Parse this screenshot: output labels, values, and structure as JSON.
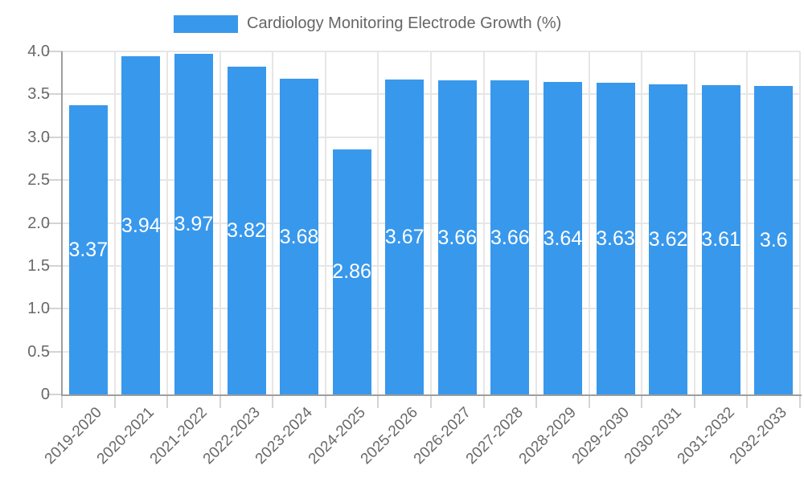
{
  "legend": {
    "label": "Cardiology Monitoring Electrode Growth (%)",
    "swatch_color": "#3898EC"
  },
  "chart_data": {
    "type": "bar",
    "title": "Cardiology Monitoring Electrode Growth (%)",
    "categories": [
      "2019-2020",
      "2020-2021",
      "2021-2022",
      "2022-2023",
      "2023-2024",
      "2024-2025",
      "2025-2026",
      "2026-2027",
      "2027-2028",
      "2028-2029",
      "2029-2030",
      "2030-2031",
      "2031-2032",
      "2032-2033"
    ],
    "values": [
      3.37,
      3.94,
      3.97,
      3.82,
      3.68,
      2.86,
      3.67,
      3.66,
      3.66,
      3.64,
      3.63,
      3.62,
      3.61,
      3.6
    ],
    "value_labels": [
      "3.37",
      "3.94",
      "3.97",
      "3.82",
      "3.68",
      "2.86",
      "3.67",
      "3.66",
      "3.66",
      "3.64",
      "3.63",
      "3.62",
      "3.61",
      "3.6"
    ],
    "xlabel": "",
    "ylabel": "",
    "ylim": [
      0,
      4.0
    ],
    "ytick_step": 0.5,
    "ytick_labels_top_to_bottom": [
      "4.0",
      "3.5",
      "3.0",
      "2.5",
      "2.0",
      "1.5",
      "1.0",
      "0.5",
      "0"
    ],
    "grid": true,
    "legend_position": "top-center",
    "colors": {
      "bar": "#3898EC",
      "value_text": "#ffffff",
      "axis_text": "#696969",
      "legend_text": "#666666",
      "gridline": "#e6e6e6",
      "tick": "#d4d4d4",
      "axis_line": "#9e9e9e",
      "background": "#ffffff"
    }
  }
}
